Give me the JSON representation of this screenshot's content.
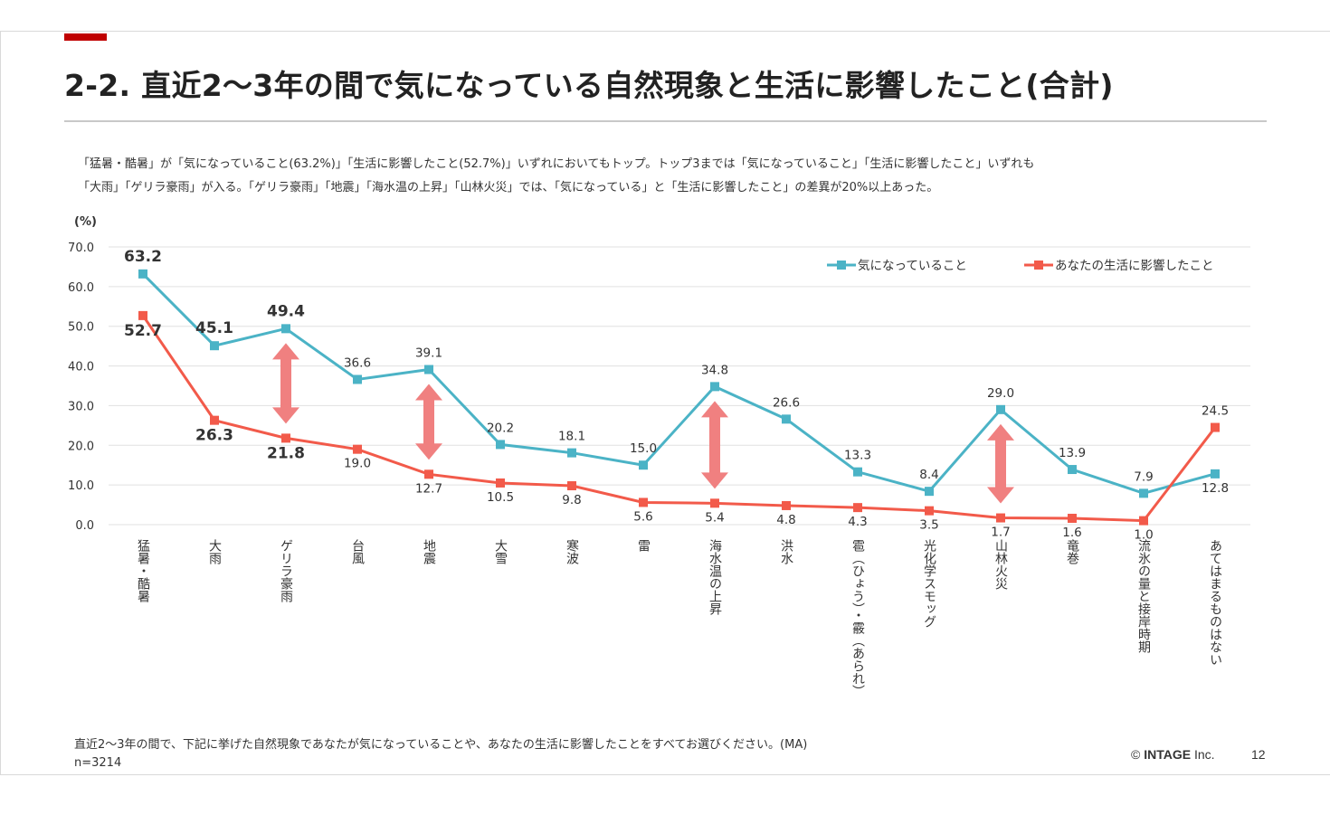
{
  "header": {
    "title": "2-2. 直近2～3年の間で気になっている自然現象と生活に影響したこと(合計)"
  },
  "description": {
    "line1": "「猛暑・酷暑」が「気になっていること(63.2%)」「生活に影響したこと(52.7%)」いずれにおいてもトップ。トップ3までは「気になっていること」「生活に影響したこと」いずれも",
    "line2": "「大雨」「ゲリラ豪雨」が入る。「ゲリラ豪雨」「地震」「海水温の上昇」「山林火災」では、「気になっている」と「生活に影響したこと」の差異が20%以上あった。"
  },
  "footer": {
    "question": "直近2～3年の間で、下記に挙げた自然現象であなたが気になっていることや、あなたの生活に影響したことをすべてお選びください。(MA)",
    "sample": "n=3214",
    "copyright_symbol": "©",
    "company": "INTAGE",
    "company_suffix": "Inc.",
    "page": "12"
  },
  "colors": {
    "series1": "#4bb3c6",
    "series2": "#f25a4a",
    "arrow": "#f08080",
    "accent": "#c00000",
    "grid": "#e0e0e0"
  },
  "chart_data": {
    "type": "line",
    "unit_label": "(%)",
    "ylim": [
      0,
      70
    ],
    "yticks": [
      "0.0",
      "10.0",
      "20.0",
      "30.0",
      "40.0",
      "50.0",
      "60.0",
      "70.0"
    ],
    "grid": true,
    "legend_position": "top-right",
    "categories": [
      "猛暑・酷暑",
      "大雨",
      "ゲリラ豪雨",
      "台風",
      "地震",
      "大雪",
      "寒波",
      "雷",
      "海水温の上昇",
      "洪水",
      "雹（ひょう）・霰（あられ）",
      "光化学スモッグ",
      "山林火災",
      "竜巻",
      "流氷の量と接岸時期",
      "あてはまるものはない"
    ],
    "series": [
      {
        "name": "気になっていること",
        "values": [
          63.2,
          45.1,
          49.4,
          36.6,
          39.1,
          20.2,
          18.1,
          15.0,
          34.8,
          26.6,
          13.3,
          8.4,
          29.0,
          13.9,
          7.9,
          12.8
        ],
        "labels": [
          "63.2",
          "45.1",
          "49.4",
          "36.6",
          "39.1",
          "20.2",
          "18.1",
          "15.0",
          "34.8",
          "26.6",
          "13.3",
          "8.4",
          "29.0",
          "13.9",
          "7.9",
          "12.8"
        ]
      },
      {
        "name": "あなたの生活に影響したこと",
        "values": [
          52.7,
          26.3,
          21.8,
          19.0,
          12.7,
          10.5,
          9.8,
          5.6,
          5.4,
          4.8,
          4.3,
          3.5,
          1.7,
          1.6,
          1.0,
          24.5
        ],
        "labels": [
          "52.7",
          "26.3",
          "21.8",
          "19.0",
          "12.7",
          "10.5",
          "9.8",
          "5.6",
          "5.4",
          "4.8",
          "4.3",
          "3.5",
          "1.7",
          "1.6",
          "1.0",
          "24.5"
        ]
      }
    ],
    "bold_labels_top_n": 3,
    "gap_arrows": [
      2,
      4,
      8,
      12
    ]
  }
}
